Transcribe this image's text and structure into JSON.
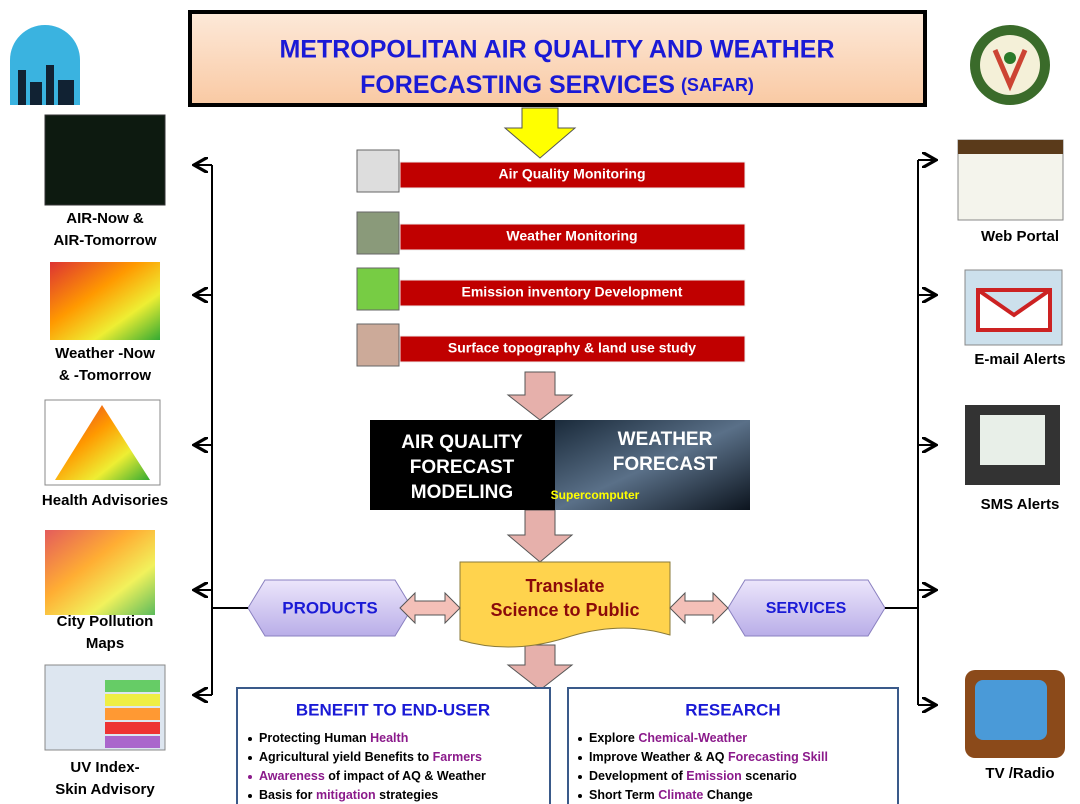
{
  "title": {
    "line1": "METROPOLITAN AIR QUALITY AND WEATHER",
    "line2": "FORECASTING SERVICES",
    "tag": "(SAFAR)"
  },
  "steps": [
    "Air Quality Monitoring",
    "Weather Monitoring",
    "Emission inventory Development",
    "Surface topography & land use study"
  ],
  "model": {
    "left": [
      "AIR QUALITY",
      "FORECAST",
      "MODELING"
    ],
    "right": [
      "WEATHER",
      "FORECAST"
    ],
    "note": "Supercomputer"
  },
  "center": [
    "Translate",
    "Science to Public"
  ],
  "products": "PRODUCTS",
  "services": "SERVICES",
  "product_items": [
    [
      "AIR-Now &",
      "AIR-Tomorrow"
    ],
    [
      "Weather -Now",
      "& -Tomorrow"
    ],
    [
      "Health Advisories"
    ],
    [
      "City Pollution",
      "Maps"
    ],
    [
      "UV Index-",
      "Skin Advisory"
    ]
  ],
  "channels": [
    "Web Portal",
    "E-mail Alerts",
    "SMS Alerts",
    "TV /Radio"
  ],
  "benefit": {
    "title": "BENEFIT TO END-USER",
    "items": [
      [
        {
          "text": "Protecting Human "
        },
        {
          "text": "Health",
          "em": true
        }
      ],
      [
        {
          "text": "Agricultural yield Benefits to "
        },
        {
          "text": "Farmers",
          "em": true
        }
      ],
      [
        {
          "text": "Awareness",
          "em": true
        },
        {
          "text": " of impact of AQ & Weather"
        }
      ],
      [
        {
          "text": "Basis for "
        },
        {
          "text": "mitigation",
          "em": true
        },
        {
          "text": " strategies"
        }
      ]
    ]
  },
  "research": {
    "title": "RESEARCH",
    "items": [
      [
        {
          "text": "Explore "
        },
        {
          "text": "Chemical-Weather",
          "em": true
        }
      ],
      [
        {
          "text": "Improve Weather & AQ "
        },
        {
          "text": "Forecasting Skill",
          "em": true
        }
      ],
      [
        {
          "text": "Development of "
        },
        {
          "text": "Emission",
          "em": true
        },
        {
          "text": " scenario"
        }
      ],
      [
        {
          "text": "Short Term "
        },
        {
          "text": "Climate",
          "em": true
        },
        {
          "text": " Change"
        }
      ]
    ]
  }
}
